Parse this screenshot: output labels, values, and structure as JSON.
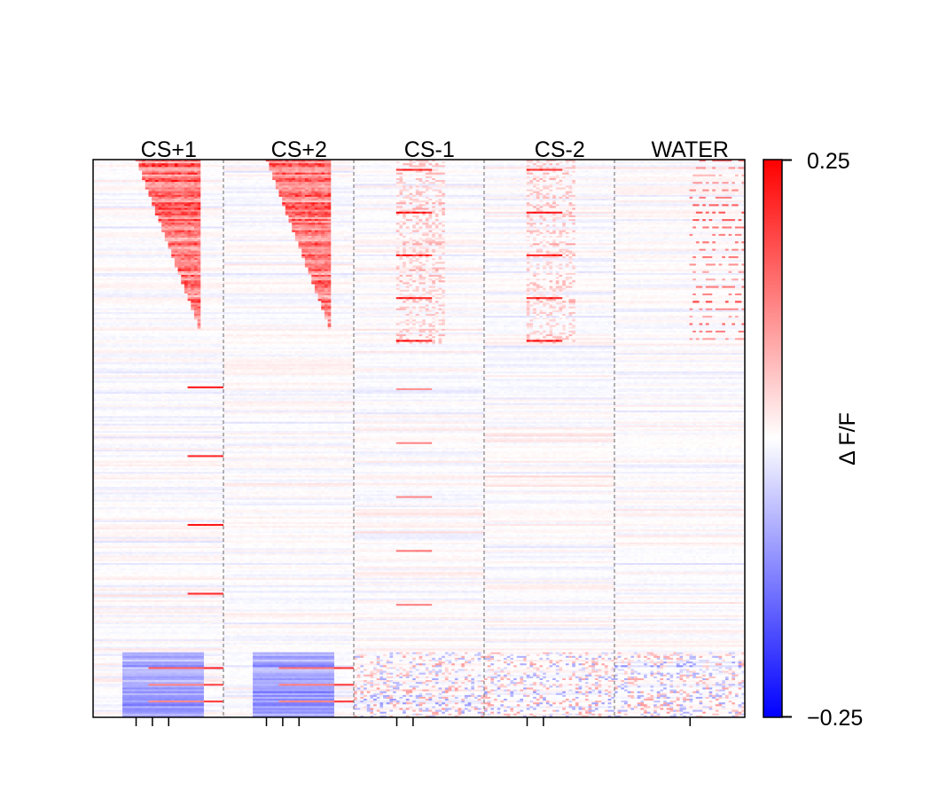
{
  "chart_data": {
    "type": "heatmap",
    "title": "",
    "xlabel": "",
    "ylabel": "",
    "conditions": [
      "CS+1",
      "CS+2",
      "CS-1",
      "CS-2",
      "WATER"
    ],
    "condition_event_ticks": [
      3,
      3,
      2,
      2,
      1
    ],
    "n_rows": 300,
    "colorbar": {
      "label": "Δ F/F",
      "vmin": -0.25,
      "vmax": 0.25,
      "tick_labels": [
        "0.25",
        "−0.25"
      ],
      "colormap": "bwr"
    },
    "response_structure": [
      {
        "rows": "1-100",
        "CS+1": "strong positive, onset shifts later with row",
        "CS+2": "strong positive, onset shifts later with row",
        "CS-1": "weak positive",
        "CS-2": "weak positive",
        "WATER": "positive in late window"
      },
      {
        "rows": "100-270",
        "all": "near zero, sparse weak responses"
      },
      {
        "rows": "270-300",
        "CS+1": "negative",
        "CS+2": "negative",
        "CS-1": "mixed",
        "CS-2": "mixed",
        "WATER": "mixed"
      }
    ],
    "grid": false,
    "legend": "none"
  },
  "colors": {
    "positive": "#ff0000",
    "zero": "#ffffff",
    "negative": "#0000ff",
    "divider": "#808080"
  }
}
